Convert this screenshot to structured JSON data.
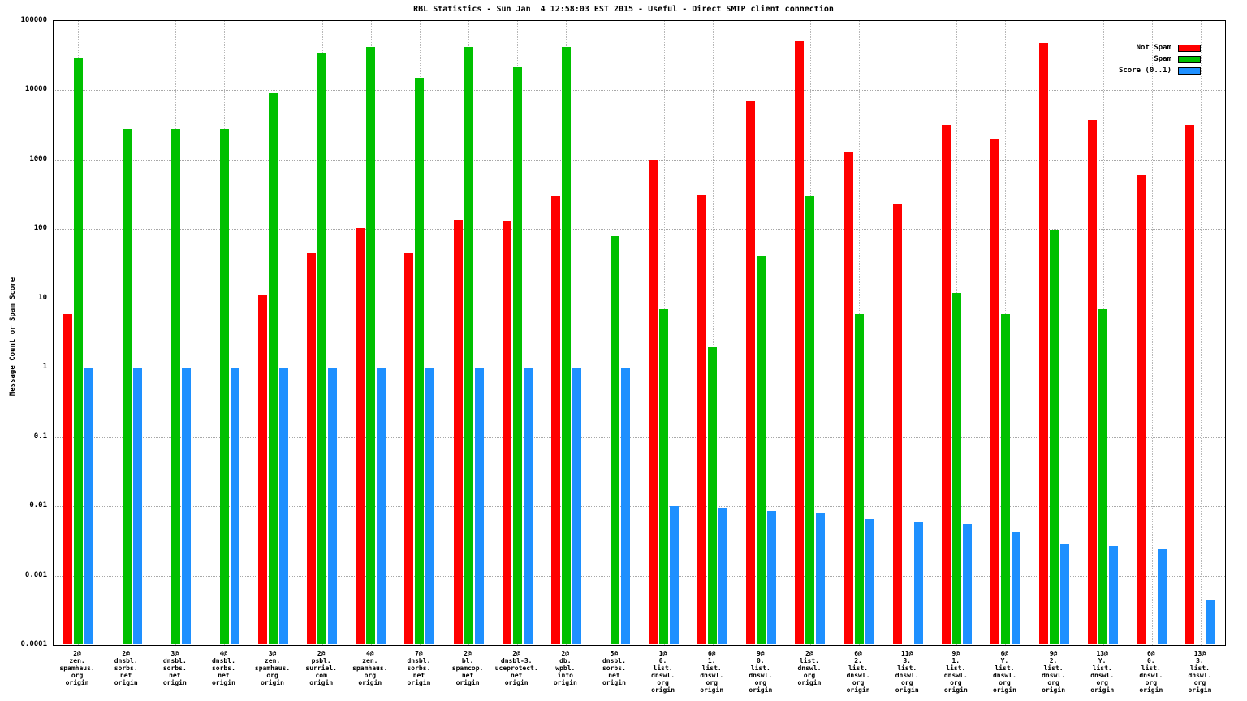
{
  "title": "RBL Statistics - Sun Jan  4 12:58:03 EST 2015 - Useful - Direct SMTP client connection",
  "axes": {
    "ylabel": "Message Count or Spam Score"
  },
  "legend": [
    {
      "label": "Not Spam",
      "color": "#ff0000"
    },
    {
      "label": "Spam",
      "color": "#00c000"
    },
    {
      "label": "Score (0..1)",
      "color": "#1e90ff"
    }
  ],
  "chart_data": {
    "type": "bar",
    "title": "RBL Statistics - Sun Jan  4 12:58:03 EST 2015 - Useful - Direct SMTP client connection",
    "xlabel": "",
    "ylabel": "Message Count or Spam Score",
    "yscale": "log",
    "ylim": [
      0.0001,
      100000
    ],
    "yticks": [
      "0.0001",
      "0.001",
      "0.01",
      "0.1",
      "1",
      "10",
      "100",
      "1000",
      "10000",
      "100000"
    ],
    "grid": true,
    "legend_position": "top-right",
    "categories": [
      [
        "2@",
        "zen.",
        "spamhaus.",
        "org",
        "origin"
      ],
      [
        "2@",
        "dnsbl.",
        "sorbs.",
        "net",
        "origin"
      ],
      [
        "3@",
        "dnsbl.",
        "sorbs.",
        "net",
        "origin"
      ],
      [
        "4@",
        "dnsbl.",
        "sorbs.",
        "net",
        "origin"
      ],
      [
        "3@",
        "zen.",
        "spamhaus.",
        "org",
        "origin"
      ],
      [
        "2@",
        "psbl.",
        "surriel.",
        "com",
        "origin"
      ],
      [
        "4@",
        "zen.",
        "spamhaus.",
        "org",
        "origin"
      ],
      [
        "7@",
        "dnsbl.",
        "sorbs.",
        "net",
        "origin"
      ],
      [
        "2@",
        "bl.",
        "spamcop.",
        "net",
        "origin"
      ],
      [
        "2@",
        "dnsbl-3.",
        "uceprotect.",
        "net",
        "origin"
      ],
      [
        "2@",
        "db.",
        "wpbl.",
        "info",
        "origin"
      ],
      [
        "5@",
        "dnsbl.",
        "sorbs.",
        "net",
        "origin"
      ],
      [
        "1@",
        "0.",
        "list.",
        "dnswl.",
        "org",
        "origin"
      ],
      [
        "6@",
        "1.",
        "list.",
        "dnswl.",
        "org",
        "origin"
      ],
      [
        "9@",
        "0.",
        "list.",
        "dnswl.",
        "org",
        "origin"
      ],
      [
        "2@",
        "list.",
        "dnswl.",
        "org",
        "origin"
      ],
      [
        "6@",
        "2.",
        "list.",
        "dnswl.",
        "org",
        "origin"
      ],
      [
        "11@",
        "3.",
        "list.",
        "dnswl.",
        "org",
        "origin"
      ],
      [
        "9@",
        "1.",
        "list.",
        "dnswl.",
        "org",
        "origin"
      ],
      [
        "6@",
        "Y.",
        "list.",
        "dnswl.",
        "org",
        "origin"
      ],
      [
        "9@",
        "2.",
        "list.",
        "dnswl.",
        "org",
        "origin"
      ],
      [
        "13@",
        "Y.",
        "list.",
        "dnswl.",
        "org",
        "origin"
      ],
      [
        "6@",
        "0.",
        "list.",
        "dnswl.",
        "org",
        "origin"
      ],
      [
        "13@",
        "3.",
        "list.",
        "dnswl.",
        "org",
        "origin"
      ]
    ],
    "series": [
      {
        "name": "Not Spam",
        "color": "#ff0000",
        "values": [
          6,
          null,
          null,
          null,
          11,
          45,
          105,
          45,
          135,
          130,
          300,
          null,
          1000,
          310,
          7000,
          52000,
          1300,
          230,
          3200,
          2000,
          48000,
          3700,
          600,
          3200
        ]
      },
      {
        "name": "Spam",
        "color": "#00c000",
        "values": [
          30000,
          2800,
          2800,
          2800,
          9000,
          35000,
          42000,
          15000,
          42000,
          22000,
          42000,
          80,
          7,
          2,
          40,
          300,
          6,
          null,
          12,
          6,
          95,
          7,
          null,
          null
        ]
      },
      {
        "name": "Score (0..1)",
        "color": "#1e90ff",
        "values": [
          1,
          1,
          1,
          1,
          1,
          1,
          1,
          1,
          1,
          1,
          1,
          1,
          0.01,
          0.0095,
          0.0085,
          0.008,
          0.0065,
          0.006,
          0.0055,
          0.0042,
          0.0028,
          0.0027,
          0.0024,
          0.00045
        ]
      }
    ]
  }
}
